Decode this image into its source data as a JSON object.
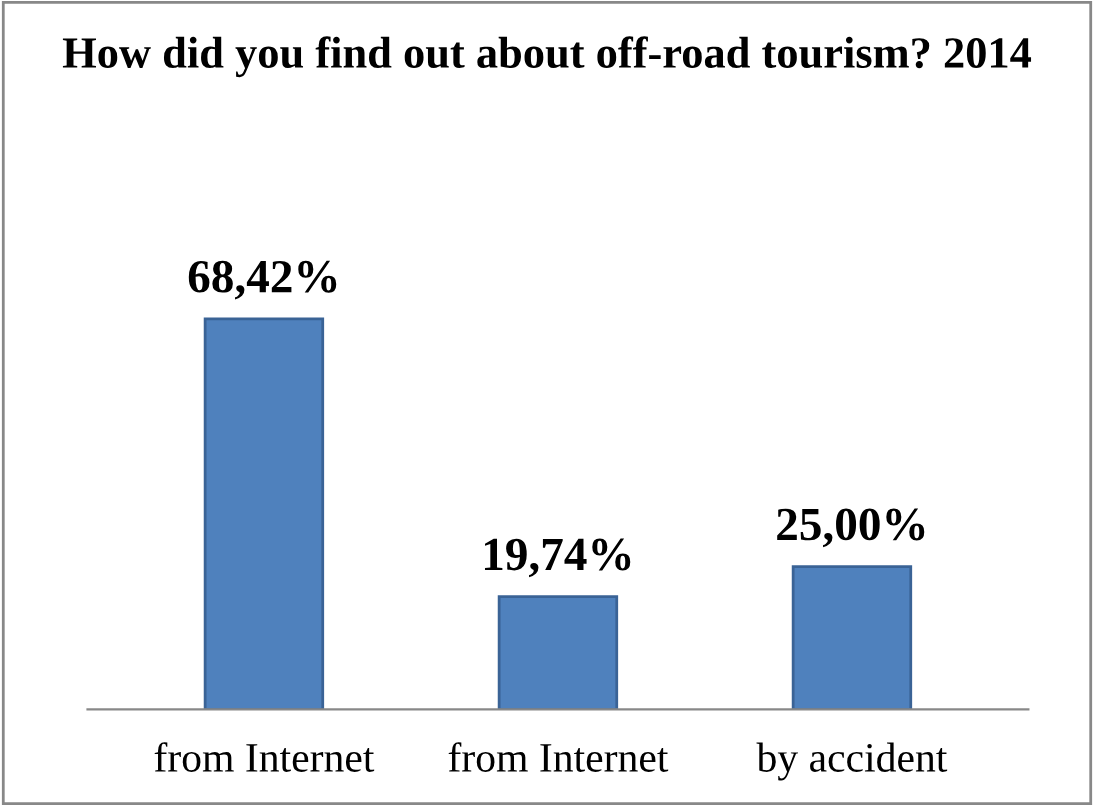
{
  "chart_data": {
    "type": "bar",
    "title": "How did you find out about off-road tourism? 2014",
    "categories": [
      "from Internet",
      "from Internet",
      "by accident"
    ],
    "values": [
      68.42,
      19.74,
      25.0
    ],
    "value_labels": [
      "68,42%",
      "19,74%",
      "25,00%"
    ],
    "color": "#4f81bd",
    "grid": false,
    "legend": false
  }
}
